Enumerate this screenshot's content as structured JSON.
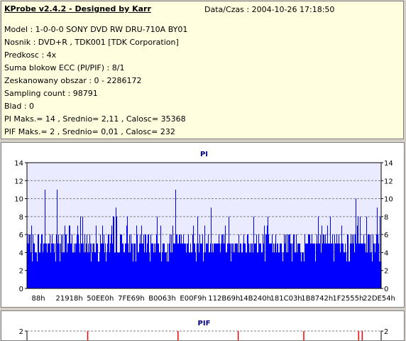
{
  "header": {
    "app_title": "KProbe v2.4.2 - Designed by Karr",
    "datetime": "Data/Czas : 2004-10-26 17:18:50"
  },
  "info_rows": [
    "Model : 1-0-0-0 SONY    DVD RW DRU-710A  BY01",
    "Nosnik : DVD+R , TDK001 [TDK Corporation]",
    "Predkosc : 4x",
    "Suma blokow ECC (PI/PIF) : 8/1",
    "Zeskanowany obszar : 0 - 2286172",
    "Sampling count : 98791",
    "Blad : 0",
    "PI Maks.= 14 , Srednio= 2,11 , Calosc= 35368",
    "PIF Maks.= 2 , Srednio= 0,01 , Calosc= 232"
  ],
  "chart_data": [
    {
      "type": "bar",
      "title": "PI",
      "ylim": [
        0,
        14
      ],
      "yticks": [
        "0",
        "2",
        "4",
        "6",
        "8",
        "10",
        "12",
        "14"
      ],
      "x_tick_labels": [
        "88h",
        "21918h",
        "50EE0h",
        "7FE69h",
        "B0063h",
        "E00F9h",
        "112B69h",
        "14B240h",
        "181C03h",
        "1B8742h",
        "1F2555h",
        "22DE54h"
      ],
      "grid": true,
      "colors": {
        "bars": "#0000ff",
        "plot_bg": "#ebebff",
        "grid": "#808080"
      },
      "baseline_range": [
        4,
        6
      ],
      "peaks": [
        {
          "x": 0.05,
          "v": 11
        },
        {
          "x": 0.085,
          "v": 11
        },
        {
          "x": 0.15,
          "v": 8
        },
        {
          "x": 0.25,
          "v": 9
        },
        {
          "x": 0.42,
          "v": 11
        },
        {
          "x": 0.52,
          "v": 9
        },
        {
          "x": 0.64,
          "v": 8
        },
        {
          "x": 0.93,
          "v": 10
        },
        {
          "x": 0.99,
          "v": 9
        }
      ]
    },
    {
      "type": "bar",
      "title": "PIF",
      "ylim": [
        0,
        2
      ],
      "yticks": [
        "2"
      ],
      "colors": {
        "bars": "#ff0000",
        "plot_bg": "#ffffff",
        "grid": "#808080"
      },
      "spikes": [
        0.17,
        0.425,
        0.595,
        0.78,
        0.935,
        0.945
      ]
    }
  ]
}
